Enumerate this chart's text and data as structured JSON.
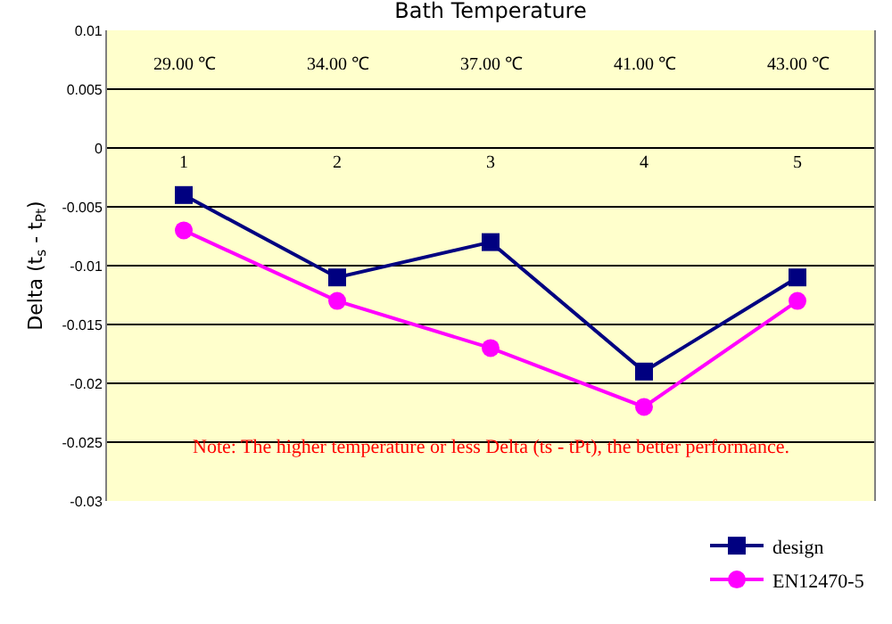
{
  "chart_data": {
    "type": "line",
    "title": "Bath Temperature",
    "ylabel": "Delta (t$_{s}$ - t$_{Pt}$)",
    "categories": [
      "1",
      "2",
      "3",
      "4",
      "5"
    ],
    "series": [
      {
        "name": "design",
        "color": "#000080",
        "marker": "square",
        "values": [
          -0.004,
          -0.011,
          -0.008,
          -0.019,
          -0.011
        ]
      },
      {
        "name": "EN12470-5",
        "color": "#ff00ff",
        "marker": "circle",
        "values": [
          -0.007,
          -0.013,
          -0.017,
          -0.022,
          -0.013
        ]
      }
    ],
    "ylim": [
      -0.03,
      0.01
    ],
    "yticks": [
      -0.03,
      -0.025,
      -0.02,
      -0.015,
      -0.01,
      -0.005,
      0,
      0.005,
      0.01
    ],
    "grid": "y",
    "legend": "bottom right",
    "annotations": [
      "29.00 ℃",
      "34.00 ℃",
      "37.00 ℃",
      "41.00 ℃",
      "43.00 ℃",
      "Note: The higher temperature or less Delta (ts - tPt), the better performance."
    ]
  }
}
